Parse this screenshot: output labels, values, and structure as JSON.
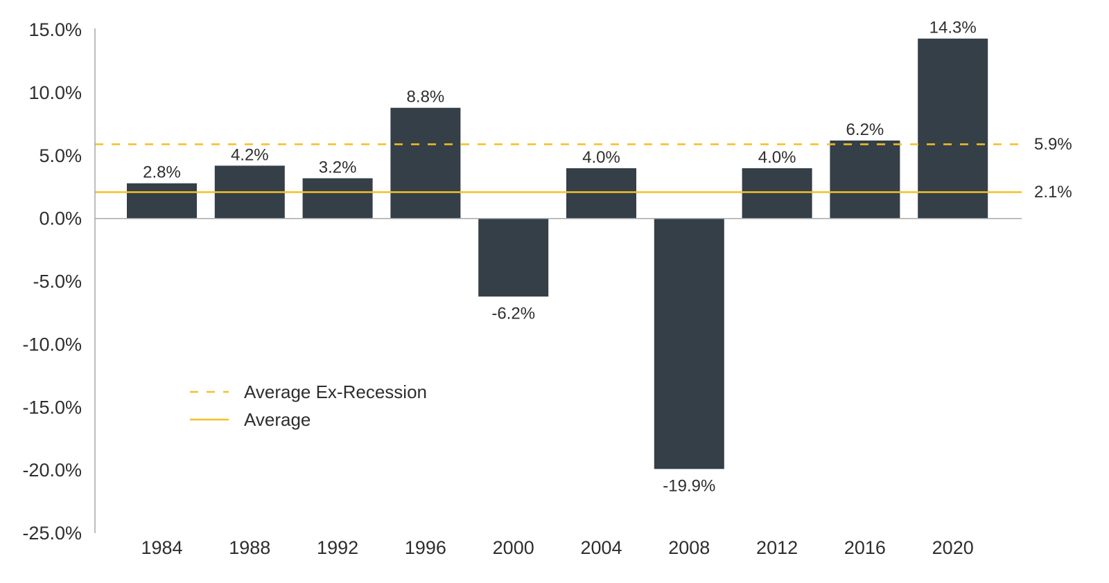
{
  "chart_data": {
    "type": "bar",
    "title": "",
    "xlabel": "",
    "ylabel": "",
    "categories": [
      "1984",
      "1988",
      "1992",
      "1996",
      "2000",
      "2004",
      "2008",
      "2012",
      "2016",
      "2020"
    ],
    "values": [
      2.8,
      4.2,
      3.2,
      8.8,
      -6.2,
      4.0,
      -19.9,
      4.0,
      6.2,
      14.3
    ],
    "value_labels": [
      "2.8%",
      "4.2%",
      "3.2%",
      "8.8%",
      "-6.2%",
      "4.0%",
      "-19.9%",
      "4.0%",
      "6.2%",
      "14.3%"
    ],
    "ylim": [
      -25,
      15
    ],
    "y_ticks": [
      15,
      10,
      5,
      0,
      -5,
      -10,
      -15,
      -20,
      -25
    ],
    "y_tick_labels": [
      "15.0%",
      "10.0%",
      "5.0%",
      "0.0%",
      "-5.0%",
      "-10.0%",
      "-15.0%",
      "-20.0%",
      "-25.0%"
    ],
    "grid": false,
    "reference_lines": [
      {
        "name": "Average Ex-Recession",
        "value": 5.9,
        "label": "5.9%",
        "style": "dashed"
      },
      {
        "name": "Average",
        "value": 2.1,
        "label": "2.1%",
        "style": "solid"
      }
    ],
    "legend_position": "bottom-left",
    "colors": {
      "bar": "#343f48",
      "reference": "#f6bf24",
      "axis": "#a6a6a6",
      "text": "#2e2e2e"
    }
  }
}
